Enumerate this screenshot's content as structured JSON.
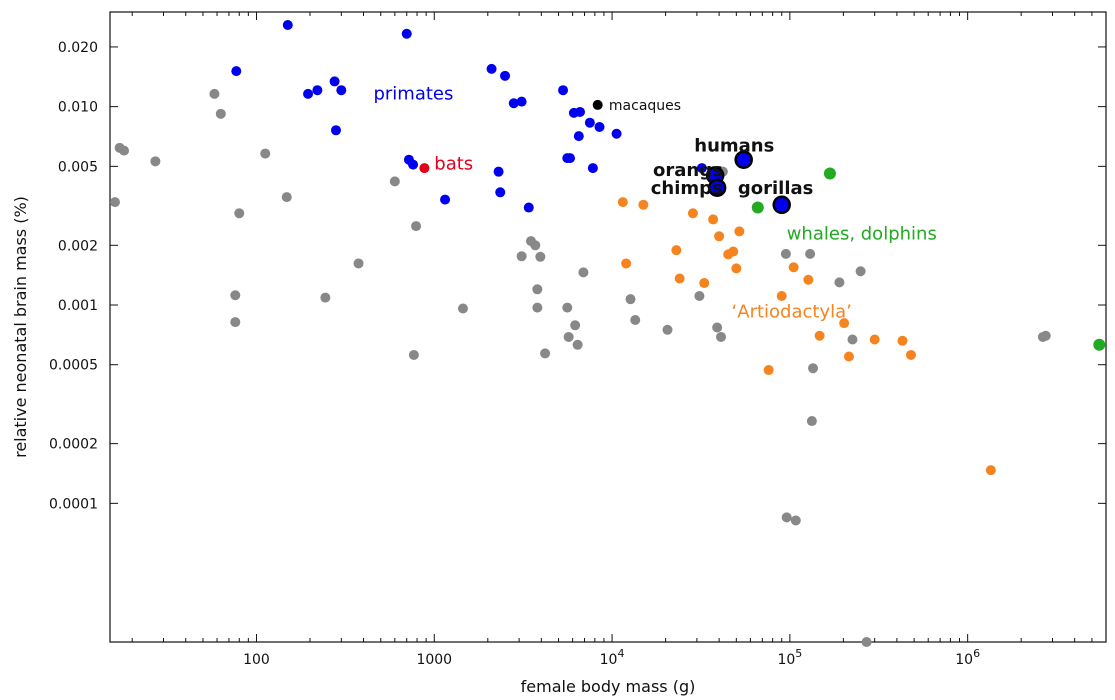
{
  "chart_data": {
    "type": "scatter",
    "title": "",
    "xlabel": "female body mass (g)",
    "ylabel": "relative neonatal brain mass (%)",
    "x_scale": "log",
    "y_scale": "log",
    "xlim": [
      15,
      6000000
    ],
    "ylim": [
      2e-05,
      0.03
    ],
    "grid": false,
    "x_ticks": [
      {
        "value": 100,
        "label": "100",
        "sup": ""
      },
      {
        "value": 1000,
        "label": "1000",
        "sup": ""
      },
      {
        "value": 10000,
        "label": "10",
        "sup": "4"
      },
      {
        "value": 100000,
        "label": "10",
        "sup": "5"
      },
      {
        "value": 1000000,
        "label": "10",
        "sup": "6"
      }
    ],
    "y_ticks": [
      {
        "value": 0.02,
        "label": "0.020"
      },
      {
        "value": 0.01,
        "label": "0.010"
      },
      {
        "value": 0.005,
        "label": "0.005"
      },
      {
        "value": 0.002,
        "label": "0.002"
      },
      {
        "value": 0.001,
        "label": "0.001"
      },
      {
        "value": 0.0005,
        "label": "0.0005"
      },
      {
        "value": 0.0002,
        "label": "0.0002"
      },
      {
        "value": 0.0001,
        "label": "0.0001"
      }
    ],
    "series": [
      {
        "color": "#888888",
        "points": [
          [
            16,
            0.0033
          ],
          [
            17,
            0.0062
          ],
          [
            18,
            0.006
          ],
          [
            27,
            0.0053
          ],
          [
            58,
            0.0116
          ],
          [
            63,
            0.0092
          ],
          [
            76,
            0.00112
          ],
          [
            76,
            0.00082
          ],
          [
            80,
            0.0029
          ],
          [
            112,
            0.0058
          ],
          [
            148,
            0.0035
          ],
          [
            244,
            0.00109
          ],
          [
            375,
            0.00162
          ],
          [
            600,
            0.0042
          ],
          [
            768,
            0.00056
          ],
          [
            790,
            0.0025
          ],
          [
            1450,
            0.00096
          ],
          [
            3100,
            0.00176
          ],
          [
            3500,
            0.0021
          ],
          [
            3700,
            0.002
          ],
          [
            3800,
            0.0012
          ],
          [
            3800,
            0.00097
          ],
          [
            3950,
            0.00175
          ],
          [
            4200,
            0.00057
          ],
          [
            5600,
            0.00097
          ],
          [
            5700,
            0.00069
          ],
          [
            6200,
            0.00079
          ],
          [
            6400,
            0.00063
          ],
          [
            6900,
            0.00146
          ],
          [
            12700,
            0.00107
          ],
          [
            13500,
            0.00084
          ],
          [
            20500,
            0.00075
          ],
          [
            31000,
            0.00111
          ],
          [
            39000,
            0.00077
          ],
          [
            41000,
            0.00069
          ],
          [
            42000,
            0.0047
          ],
          [
            95000,
            0.00181
          ],
          [
            96000,
            8.5e-05
          ],
          [
            108000,
            8.2e-05
          ],
          [
            130000,
            0.00181
          ],
          [
            133000,
            0.00026
          ],
          [
            135000,
            0.00048
          ],
          [
            190000,
            0.0013
          ],
          [
            225000,
            0.00067
          ],
          [
            250000,
            0.00148
          ],
          [
            270000,
            2e-05
          ],
          [
            2650000,
            0.00069
          ],
          [
            2750000,
            0.0007
          ]
        ]
      },
      {
        "color": "#0000ee",
        "points": [
          [
            77,
            0.0151
          ],
          [
            150,
            0.0258
          ],
          [
            195,
            0.0116
          ],
          [
            220,
            0.0121
          ],
          [
            275,
            0.0134
          ],
          [
            280,
            0.0076
          ],
          [
            300,
            0.0121
          ],
          [
            700,
            0.0233
          ],
          [
            720,
            0.0054
          ],
          [
            760,
            0.0051
          ],
          [
            1150,
            0.0034
          ],
          [
            2100,
            0.0155
          ],
          [
            2300,
            0.0047
          ],
          [
            2350,
            0.0037
          ],
          [
            2500,
            0.0143
          ],
          [
            2800,
            0.0104
          ],
          [
            3100,
            0.0106
          ],
          [
            3400,
            0.0031
          ],
          [
            5300,
            0.0121
          ],
          [
            5600,
            0.0055
          ],
          [
            5800,
            0.0055
          ],
          [
            6100,
            0.0093
          ],
          [
            6500,
            0.0071
          ],
          [
            6600,
            0.0094
          ],
          [
            7500,
            0.0083
          ],
          [
            7800,
            0.0049
          ],
          [
            8500,
            0.0079
          ],
          [
            10600,
            0.0073
          ],
          [
            32000,
            0.0049
          ],
          [
            38000,
            0.0042
          ],
          [
            38500,
            0.0039
          ]
        ]
      },
      {
        "color": "#f5841f",
        "points": [
          [
            11500,
            0.0033
          ],
          [
            12000,
            0.00162
          ],
          [
            15000,
            0.0032
          ],
          [
            23000,
            0.00189
          ],
          [
            24000,
            0.00136
          ],
          [
            28500,
            0.0029
          ],
          [
            33000,
            0.00129
          ],
          [
            37000,
            0.0027
          ],
          [
            40000,
            0.00222
          ],
          [
            45000,
            0.0018
          ],
          [
            48000,
            0.00186
          ],
          [
            50000,
            0.00153
          ],
          [
            52000,
            0.00235
          ],
          [
            76000,
            0.00047
          ],
          [
            90000,
            0.00111
          ],
          [
            105000,
            0.00155
          ],
          [
            127000,
            0.00134
          ],
          [
            147000,
            0.0007
          ],
          [
            202000,
            0.00081
          ],
          [
            215000,
            0.00055
          ],
          [
            300000,
            0.00067
          ],
          [
            430000,
            0.00066
          ],
          [
            480000,
            0.00056
          ],
          [
            1350000,
            0.000147
          ]
        ]
      },
      {
        "color": "#e2001a",
        "points": [
          [
            880,
            0.0049
          ]
        ]
      },
      {
        "color": "#22aa22",
        "points": [
          [
            66000,
            0.0031
          ],
          [
            168000,
            0.0046
          ],
          [
            5500000,
            0.00063
          ]
        ]
      },
      {
        "color": "#000000",
        "points": [
          [
            8300,
            0.0102
          ]
        ]
      }
    ],
    "highlights": [
      {
        "label": "humans",
        "x": 55000,
        "y": 0.0054
      },
      {
        "label": "orangs",
        "x": 38000,
        "y": 0.0045
      },
      {
        "label": "chimps",
        "x": 39000,
        "y": 0.0039
      },
      {
        "label": "gorillas",
        "x": 90000,
        "y": 0.0032
      }
    ],
    "annotations": [
      {
        "text": "primates",
        "x": 455,
        "y": 0.0117,
        "color": "#0000ee",
        "size": 18,
        "weight": "normal"
      },
      {
        "text": "bats",
        "x": 1000,
        "y": 0.0052,
        "color": "#e2001a",
        "size": 18,
        "weight": "normal"
      },
      {
        "text": "macaques",
        "x": 9600,
        "y": 0.0102,
        "color": "#111111",
        "size": 14,
        "weight": "normal"
      },
      {
        "text": "humans",
        "x": 29000,
        "y": 0.0064,
        "color": "#111111",
        "size": 18,
        "weight": "bold"
      },
      {
        "text": "orangs",
        "x": 17000,
        "y": 0.0048,
        "color": "#111111",
        "size": 18,
        "weight": "bold"
      },
      {
        "text": "chimps",
        "x": 16500,
        "y": 0.0039,
        "color": "#111111",
        "size": 18,
        "weight": "bold"
      },
      {
        "text": "gorillas",
        "x": 51000,
        "y": 0.0039,
        "color": "#111111",
        "size": 18,
        "weight": "bold"
      },
      {
        "text": "whales, dolphins",
        "x": 96000,
        "y": 0.0023,
        "color": "#22aa22",
        "size": 18,
        "weight": "normal"
      },
      {
        "text": "‘Artiodactyla’",
        "x": 47000,
        "y": 0.00093,
        "color": "#f5841f",
        "size": 18,
        "weight": "normal"
      }
    ]
  }
}
